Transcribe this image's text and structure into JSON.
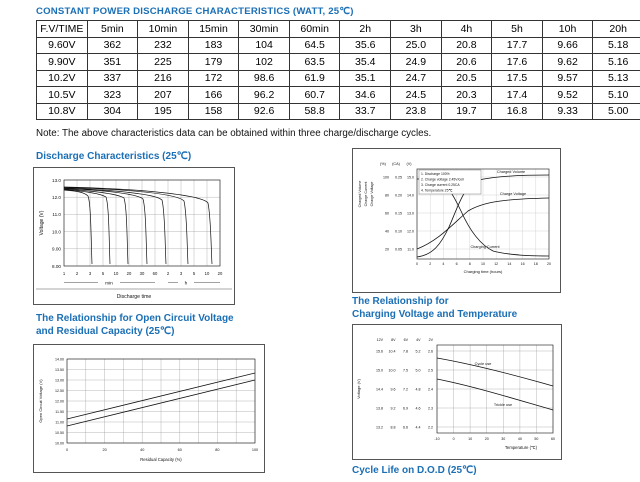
{
  "accent_color": "#1b6fb5",
  "page": {
    "title": "CONSTANT POWER DISCHARGE CHARACTERISTICS (WATT, 25℃)",
    "note": "Note: The above characteristics data can be obtained within three charge/discharge cycles."
  },
  "table": {
    "headers": [
      "F.V/TIME",
      "5min",
      "10min",
      "15min",
      "30min",
      "60min",
      "2h",
      "3h",
      "4h",
      "5h",
      "10h",
      "20h"
    ],
    "rows": [
      [
        "9.60V",
        "362",
        "232",
        "183",
        "104",
        "64.5",
        "35.6",
        "25.0",
        "20.8",
        "17.7",
        "9.66",
        "5.18"
      ],
      [
        "9.90V",
        "351",
        "225",
        "179",
        "102",
        "63.5",
        "35.4",
        "24.9",
        "20.6",
        "17.6",
        "9.62",
        "5.16"
      ],
      [
        "10.2V",
        "337",
        "216",
        "172",
        "98.6",
        "61.9",
        "35.1",
        "24.7",
        "20.5",
        "17.5",
        "9.57",
        "5.13"
      ],
      [
        "10.5V",
        "323",
        "207",
        "166",
        "96.2",
        "60.7",
        "34.6",
        "24.5",
        "20.3",
        "17.4",
        "9.52",
        "5.10"
      ],
      [
        "10.8V",
        "304",
        "195",
        "158",
        "92.6",
        "58.8",
        "33.7",
        "23.8",
        "19.7",
        "16.8",
        "9.33",
        "5.00"
      ]
    ]
  },
  "headings": {
    "discharge": "Discharge Characteristics (25℃)",
    "ocv_line1": "The Relationship for Open Circuit Voltage",
    "ocv_line2": "and Residual Capacity (25℃)",
    "charge_temp_line1": "The Relationship for",
    "charge_temp_line2": "Charging Voltage and Temperature",
    "cycle_life": "Cycle Life on D.O.D (25℃)"
  },
  "charts": {
    "discharge": {
      "y_label": "Voltage (V)",
      "y_ticks": [
        "13.0",
        "12.0",
        "11.0",
        "10.0",
        "9.00",
        "8.00"
      ],
      "x_ticks_min": [
        "1",
        "2",
        "3",
        "5",
        "10",
        "20",
        "30",
        "60"
      ],
      "x_ticks_h": [
        "2",
        "3",
        "5",
        "10",
        "20"
      ],
      "x_unit_min": "min",
      "x_unit_h": "h",
      "x_label": "Discharge time"
    },
    "charging": {
      "y_labels": [
        "Charged Volume",
        "Charge Current",
        "Charge Voltage"
      ],
      "axis_units": [
        "(%)",
        "(CA)",
        "(V)"
      ],
      "pct_ticks": [
        "100",
        "80",
        "60",
        "40",
        "20"
      ],
      "ca_ticks": [
        "0.25",
        "0.20",
        "0.15",
        "0.10",
        "0.05"
      ],
      "v_ticks": [
        "15.0",
        "14.0",
        "13.0",
        "12.0",
        "11.0"
      ],
      "legend": [
        "1. Discharge 100%",
        "2. Charge voltage 2.45V/cell",
        "3. Charge current 0.25CA",
        "4. Temperature 25℃"
      ],
      "curve_label_volume": "Charged Volume",
      "curve_label_voltage": "Charge Voltage",
      "curve_label_current": "Charging Current",
      "x_ticks": [
        "0",
        "2",
        "4",
        "6",
        "8",
        "10",
        "12",
        "14",
        "16",
        "18",
        "20"
      ],
      "x_label": "Charging time (hours)"
    },
    "ocv": {
      "y_label": "Open Circuit Voltage (V)",
      "y_ticks": [
        "14.00",
        "13.50",
        "13.00",
        "12.50",
        "12.00",
        "11.50",
        "11.00",
        "10.50",
        "10.00"
      ],
      "x_ticks": [
        "0",
        "20",
        "40",
        "60",
        "80",
        "100"
      ],
      "x_label": "Residual Capacity (%)"
    },
    "charge_temp": {
      "y_label": "Voltage (V)",
      "col_headers": [
        "12V",
        "8V",
        "6V",
        "4V",
        "2V"
      ],
      "scale_ticks": [
        [
          "15.6",
          "15.0",
          "14.4",
          "13.8",
          "13.2"
        ],
        [
          "10.4",
          "10.0",
          "9.6",
          "9.2",
          "8.8"
        ],
        [
          "7.8",
          "7.5",
          "7.2",
          "6.9",
          "6.6"
        ],
        [
          "5.2",
          "5.0",
          "4.8",
          "4.6",
          "4.4"
        ],
        [
          "2.6",
          "2.5",
          "2.4",
          "2.3",
          "2.2"
        ]
      ],
      "curve_label_upper": "Cycle use",
      "curve_label_lower": "Trickle use",
      "x_ticks": [
        "-10",
        "0",
        "10",
        "20",
        "30",
        "40",
        "50",
        "60"
      ],
      "x_label": "Temperature (℃)"
    }
  }
}
